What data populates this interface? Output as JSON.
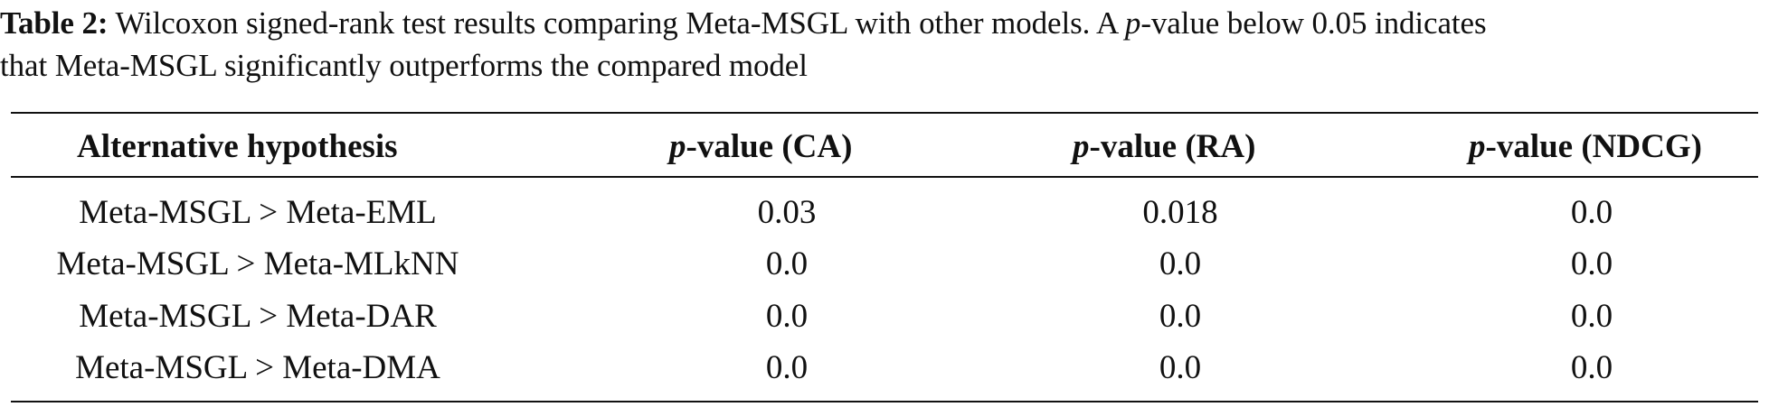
{
  "caption": {
    "label": "Table 2:",
    "line1_a": " Wilcoxon signed-rank test results comparing Meta-MSGL with other models. A ",
    "line1_p": "p",
    "line1_b": "-value below 0.05 indicates",
    "line2": "that Meta-MSGL significantly outperforms the compared model"
  },
  "table": {
    "headers": {
      "h1": "Alternative hypothesis",
      "h2_p": "p",
      "h2_rest": "-value (CA)",
      "h3_p": "p",
      "h3_rest": "-value (RA)",
      "h4_p": "p",
      "h4_rest": "-value (NDCG)"
    },
    "rows": [
      {
        "hypothesis": "Meta-MSGL > Meta-EML",
        "ca": "0.03",
        "ra": "0.018",
        "ndcg": "0.0"
      },
      {
        "hypothesis": "Meta-MSGL > Meta-MLkNN",
        "ca": "0.0",
        "ra": "0.0",
        "ndcg": "0.0"
      },
      {
        "hypothesis": "Meta-MSGL > Meta-DAR",
        "ca": "0.0",
        "ra": "0.0",
        "ndcg": "0.0"
      },
      {
        "hypothesis": "Meta-MSGL > Meta-DMA",
        "ca": "0.0",
        "ra": "0.0",
        "ndcg": "0.0"
      }
    ]
  }
}
